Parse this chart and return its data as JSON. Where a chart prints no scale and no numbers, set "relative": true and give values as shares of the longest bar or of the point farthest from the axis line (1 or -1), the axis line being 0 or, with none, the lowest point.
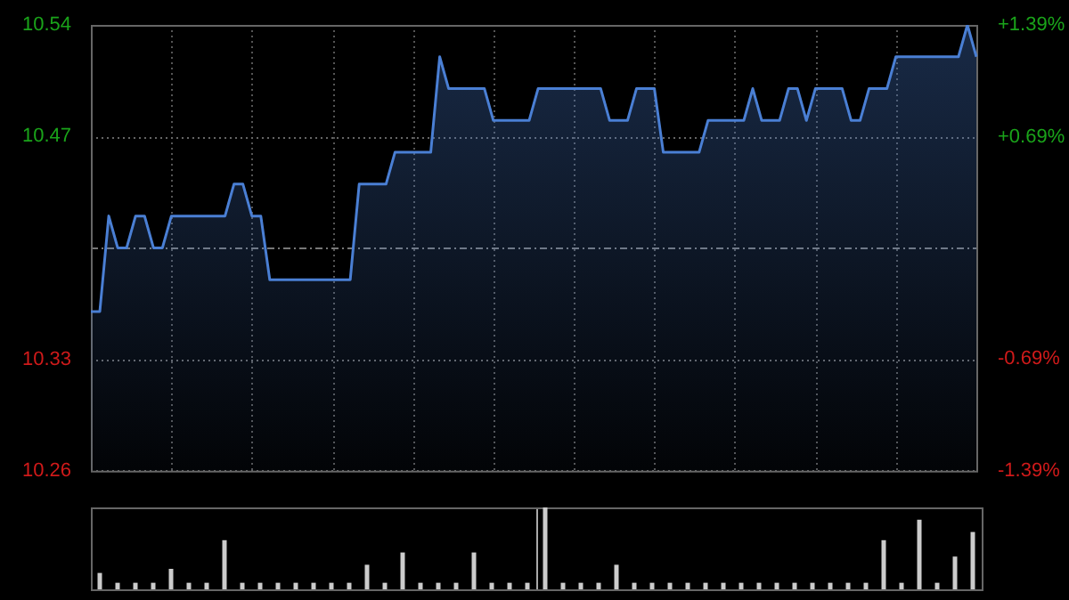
{
  "chart_data": [
    {
      "type": "area",
      "categories": [
        null,
        null,
        null,
        null,
        null,
        null,
        null,
        null,
        null,
        null,
        null,
        null,
        null,
        null,
        null,
        null,
        null,
        null,
        null,
        null,
        null,
        null,
        null,
        null,
        null,
        null,
        null,
        null,
        null,
        null,
        null,
        null,
        null,
        null,
        null,
        null,
        null,
        null,
        null,
        null,
        null,
        null,
        null,
        null,
        null,
        null,
        null,
        null,
        null,
        null,
        null,
        null,
        null,
        null,
        null,
        null,
        null,
        null,
        null,
        null,
        null,
        null,
        null,
        null,
        null,
        null,
        null,
        null,
        null,
        null,
        null,
        null,
        null,
        null,
        null,
        null,
        null,
        null,
        null,
        null,
        null,
        null,
        null,
        null,
        null,
        null,
        null,
        null,
        null,
        null,
        null,
        null,
        null,
        null,
        null,
        null,
        null,
        null,
        null,
        null
      ],
      "series": [
        {
          "color": "#4a7fd4",
          "values": [
            10.36,
            10.36,
            10.42,
            10.4,
            10.4,
            10.42,
            10.42,
            10.4,
            10.4,
            10.42,
            10.42,
            10.42,
            10.42,
            10.42,
            10.42,
            10.42,
            10.44,
            10.44,
            10.42,
            10.42,
            10.38,
            10.38,
            10.38,
            10.38,
            10.38,
            10.38,
            10.38,
            10.38,
            10.38,
            10.38,
            10.44,
            10.44,
            10.44,
            10.44,
            10.46,
            10.46,
            10.46,
            10.46,
            10.46,
            10.52,
            10.5,
            10.5,
            10.5,
            10.5,
            10.5,
            10.48,
            10.48,
            10.48,
            10.48,
            10.48,
            10.5,
            10.5,
            10.5,
            10.5,
            10.5,
            10.5,
            10.5,
            10.5,
            10.48,
            10.48,
            10.48,
            10.5,
            10.5,
            10.5,
            10.46,
            10.46,
            10.46,
            10.46,
            10.46,
            10.48,
            10.48,
            10.48,
            10.48,
            10.48,
            10.5,
            10.48,
            10.48,
            10.48,
            10.5,
            10.5,
            10.48,
            10.5,
            10.5,
            10.5,
            10.5,
            10.48,
            10.48,
            10.5,
            10.5,
            10.5,
            10.52,
            10.52,
            10.52,
            10.52,
            10.52,
            10.52,
            10.52,
            10.52,
            10.54,
            10.52
          ]
        }
      ],
      "ylim": [
        10.26,
        10.54
      ],
      "yticks": [
        10.26,
        10.33,
        10.47,
        10.54
      ],
      "y2lim": [
        -1.39,
        1.39
      ],
      "y2ticks": [
        {
          "value": -1.39,
          "label": "-1.39%"
        },
        {
          "value": -0.69,
          "label": "-0.69%"
        },
        {
          "value": 0.69,
          "label": "+0.69%"
        },
        {
          "value": 1.39,
          "label": "+1.39%"
        }
      ],
      "ref_lines": [
        {
          "axis": "y",
          "value": 10.4,
          "line_style": "dashed"
        }
      ],
      "grid": true
    },
    {
      "type": "bar",
      "relative": true,
      "categories": [
        null,
        null,
        null,
        null,
        null,
        null,
        null,
        null,
        null,
        null,
        null,
        null,
        null,
        null,
        null,
        null,
        null,
        null,
        null,
        null,
        null,
        null,
        null,
        null,
        null,
        null,
        null,
        null,
        null,
        null,
        null,
        null,
        null,
        null,
        null,
        null,
        null,
        null,
        null,
        null,
        null,
        null,
        null,
        null,
        null,
        null,
        null,
        null,
        null,
        null
      ],
      "color": "#cccccc",
      "values": [
        0.2,
        0.08,
        0.08,
        0.08,
        0.25,
        0.08,
        0.08,
        0.6,
        0.08,
        0.08,
        0.08,
        0.08,
        0.08,
        0.08,
        0.08,
        0.3,
        0.08,
        0.45,
        0.08,
        0.08,
        0.08,
        0.45,
        0.08,
        0.08,
        0.08,
        1,
        0.08,
        0.08,
        0.08,
        0.3,
        0.08,
        0.08,
        0.08,
        0.08,
        0.08,
        0.08,
        0.08,
        0.08,
        0.08,
        0.08,
        0.08,
        0.08,
        0.08,
        0.08,
        0.6,
        0.08,
        0.85,
        0.08,
        0.4,
        0.7
      ],
      "grid": true
    }
  ]
}
